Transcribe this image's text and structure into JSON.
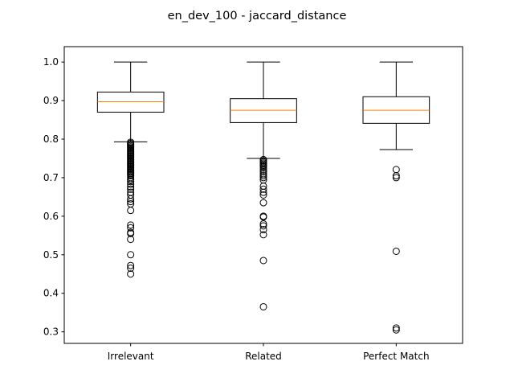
{
  "chart_data": {
    "type": "box",
    "title": "en_dev_100 - jaccard_distance",
    "xlabel": "",
    "ylabel": "",
    "ylim": [
      0.27,
      1.04
    ],
    "yticks": [
      0.3,
      0.4,
      0.5,
      0.6,
      0.7,
      0.8,
      0.9,
      1.0
    ],
    "ytick_labels": [
      "0.3",
      "0.4",
      "0.5",
      "0.6",
      "0.7",
      "0.8",
      "0.9",
      "1.0"
    ],
    "grid": false,
    "median_color": "#ff7f0e",
    "box_color": "#000000",
    "categories": [
      "Irrelevant",
      "Related",
      "Perfect Match"
    ],
    "boxes": [
      {
        "category": "Irrelevant",
        "whisker_low": 0.793,
        "q1": 0.87,
        "median": 0.897,
        "q3": 0.922,
        "whisker_high": 1.0,
        "outliers": [
          0.792,
          0.789,
          0.786,
          0.783,
          0.78,
          0.777,
          0.774,
          0.771,
          0.768,
          0.765,
          0.762,
          0.759,
          0.756,
          0.753,
          0.75,
          0.747,
          0.744,
          0.741,
          0.738,
          0.735,
          0.732,
          0.729,
          0.726,
          0.723,
          0.72,
          0.717,
          0.714,
          0.711,
          0.708,
          0.705,
          0.7,
          0.695,
          0.69,
          0.683,
          0.676,
          0.67,
          0.662,
          0.655,
          0.645,
          0.638,
          0.632,
          0.615,
          0.577,
          0.57,
          0.558,
          0.555,
          0.54,
          0.5,
          0.472,
          0.465,
          0.45
        ]
      },
      {
        "category": "Related",
        "whisker_low": 0.75,
        "q1": 0.843,
        "median": 0.875,
        "q3": 0.905,
        "whisker_high": 1.0,
        "outliers": [
          0.747,
          0.744,
          0.741,
          0.738,
          0.735,
          0.732,
          0.729,
          0.725,
          0.72,
          0.715,
          0.71,
          0.705,
          0.7,
          0.694,
          0.678,
          0.67,
          0.662,
          0.655,
          0.635,
          0.6,
          0.598,
          0.58,
          0.575,
          0.565,
          0.552,
          0.485,
          0.365
        ]
      },
      {
        "category": "Perfect Match",
        "whisker_low": 0.773,
        "q1": 0.841,
        "median": 0.875,
        "q3": 0.91,
        "whisker_high": 1.0,
        "outliers": [
          0.721,
          0.705,
          0.7,
          0.509,
          0.31,
          0.305
        ]
      }
    ]
  }
}
